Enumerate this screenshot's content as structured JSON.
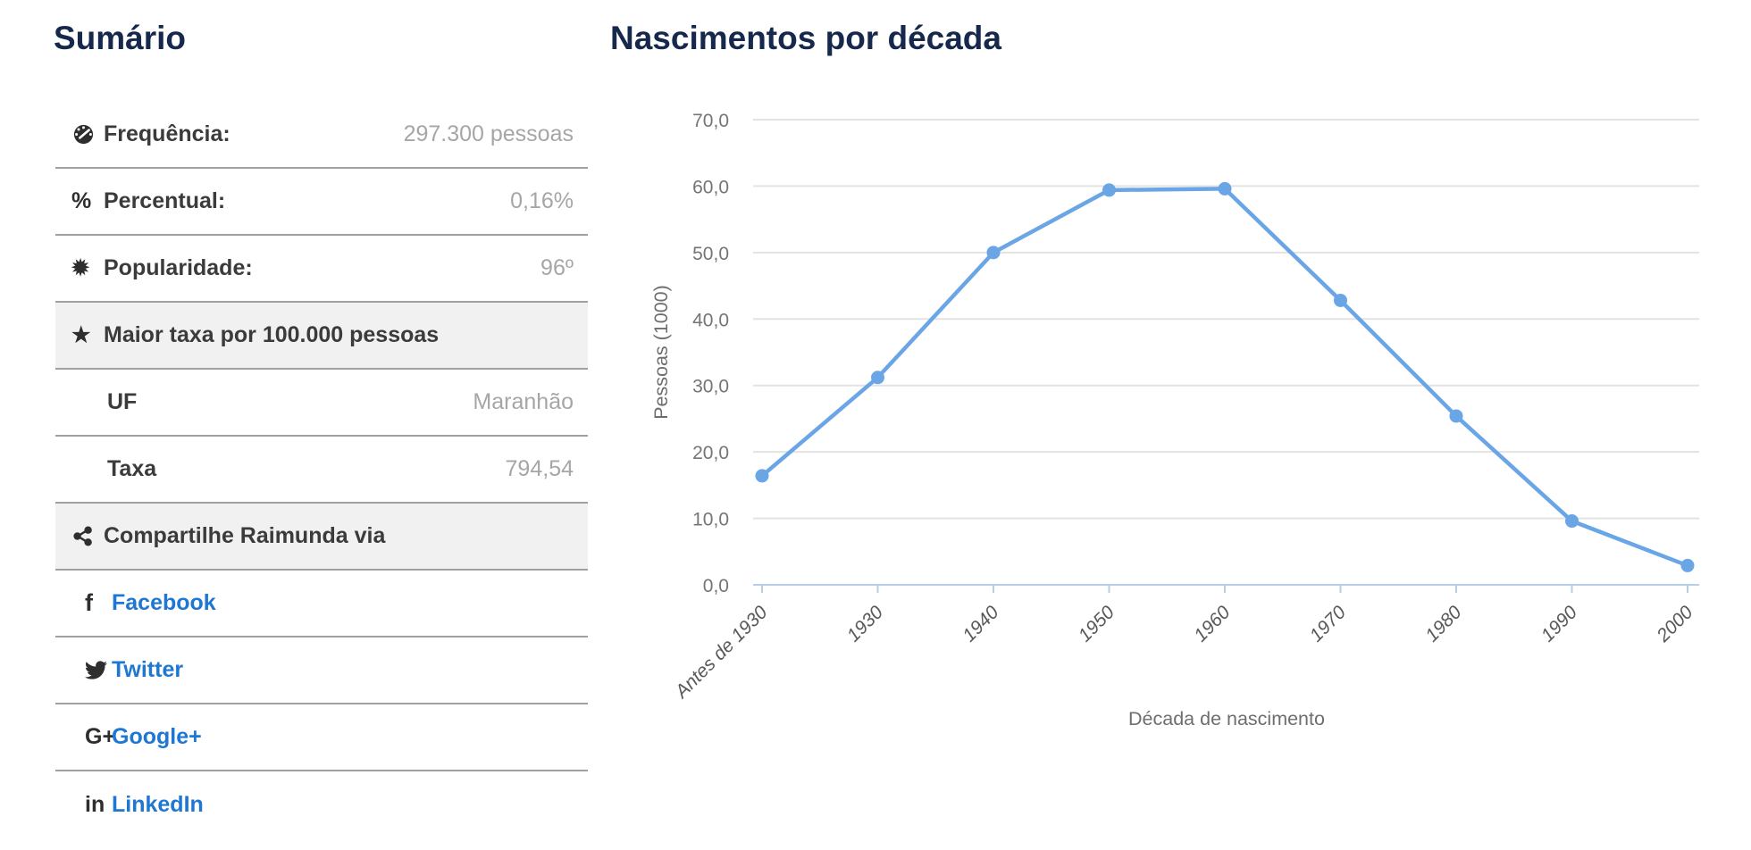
{
  "summary": {
    "title": "Sumário",
    "rows": [
      {
        "kind": "stat",
        "icon": "tachometer-icon",
        "label": "Frequência:",
        "value": "297.300 pessoas"
      },
      {
        "kind": "stat",
        "icon": "percent-icon",
        "label": "Percentual:",
        "value": "0,16%"
      },
      {
        "kind": "stat",
        "icon": "certificate-icon",
        "label": "Popularidade:",
        "value": "96º"
      },
      {
        "kind": "header",
        "icon": "star-icon",
        "label": "Maior taxa por 100.000 pessoas",
        "value": ""
      },
      {
        "kind": "sub",
        "icon": "",
        "label": "UF",
        "value": "Maranhão"
      },
      {
        "kind": "sub",
        "icon": "",
        "label": "Taxa",
        "value": "794,54"
      },
      {
        "kind": "header",
        "icon": "share-icon",
        "label": "Compartilhe Raimunda via",
        "value": ""
      },
      {
        "kind": "social",
        "icon": "facebook-icon",
        "label": "Facebook",
        "value": ""
      },
      {
        "kind": "social",
        "icon": "twitter-icon",
        "label": "Twitter",
        "value": ""
      },
      {
        "kind": "social",
        "icon": "googleplus-icon",
        "label": "Google+",
        "value": ""
      },
      {
        "kind": "social",
        "icon": "linkedin-icon",
        "label": "LinkedIn",
        "value": ""
      }
    ]
  },
  "chart_data": {
    "type": "line",
    "title": "Nascimentos por década",
    "categories": [
      "Antes de 1930",
      "1930",
      "1940",
      "1950",
      "1960",
      "1970",
      "1980",
      "1990",
      "2000"
    ],
    "values": [
      16.4,
      31.2,
      50.0,
      59.4,
      59.6,
      42.8,
      25.4,
      9.6,
      2.9
    ],
    "xlabel": "Década de nascimento",
    "ylabel": "Pessoas (1000)",
    "ylim": [
      0,
      70
    ],
    "ytick_step": 10,
    "ytick_decimal_comma": true,
    "grid": true,
    "legend": "none",
    "marker": "circle"
  },
  "colors": {
    "title_navy": "#16294d",
    "link_blue": "#1d77d3",
    "label_dark": "#3b3b3b",
    "value_gray": "#a6a6a6",
    "row_border": "#a0a0a0",
    "header_row_bg": "#f1f1f1",
    "line_blue": "#6aa5e6",
    "grid": "#e3e3e3",
    "axis": "#b9cde4",
    "tick_text": "#757575"
  }
}
